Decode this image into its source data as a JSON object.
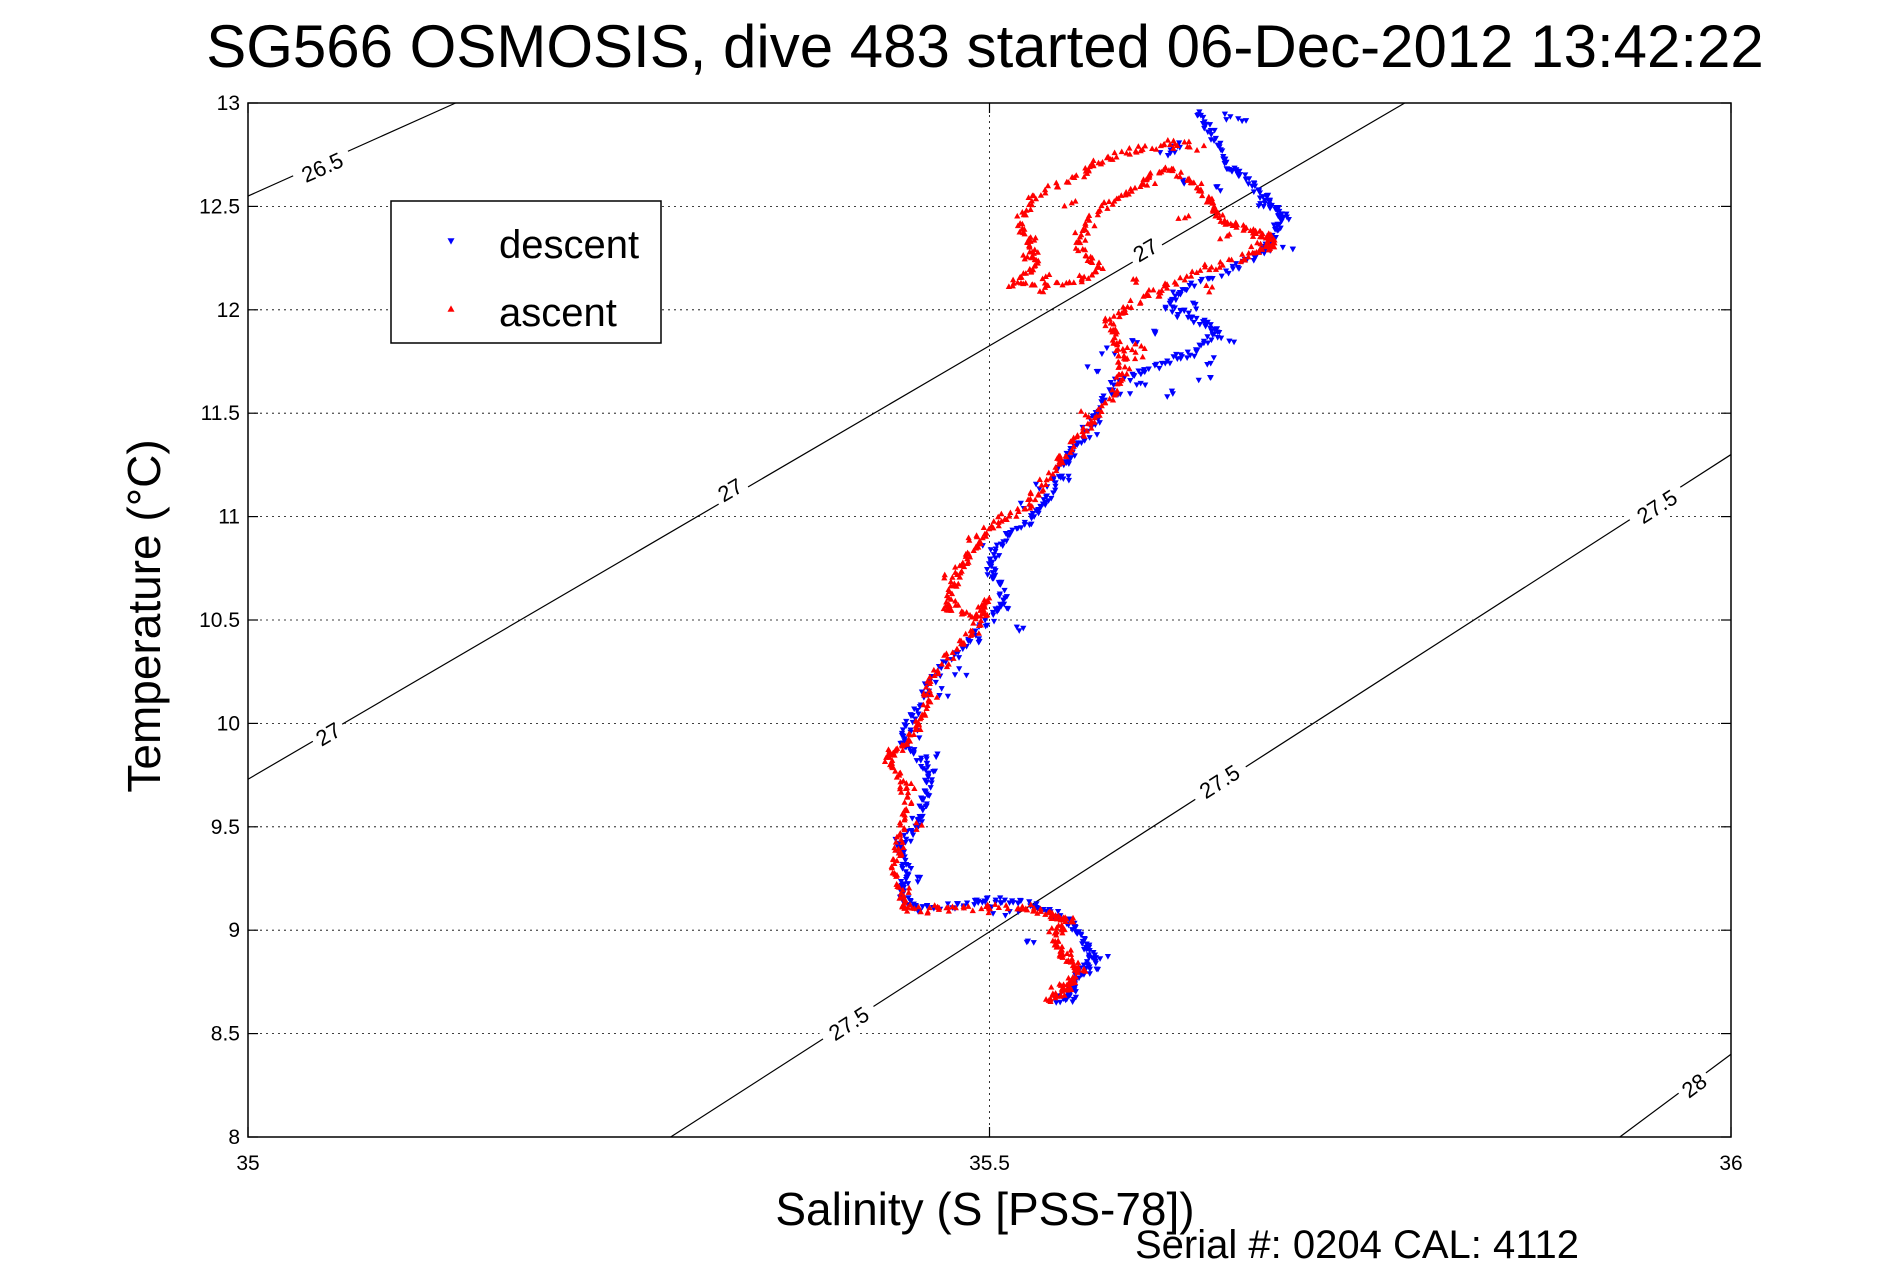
{
  "chart_data": {
    "type": "scatter",
    "title": "SG566 OSMOSIS, dive 483 started 06-Dec-2012 13:42:22",
    "xlabel": "Salinity (S [PSS-78])",
    "ylabel": "Temperature (°C)",
    "xlim": [
      35,
      36
    ],
    "ylim": [
      8,
      13
    ],
    "x_ticks": [
      35,
      35.5,
      36
    ],
    "x_tick_labels": [
      "35",
      "35.5",
      "36"
    ],
    "y_ticks": [
      8,
      8.5,
      9,
      9.5,
      10,
      10.5,
      11,
      11.5,
      12,
      12.5,
      13
    ],
    "y_tick_labels": [
      "8",
      "8.5",
      "9",
      "9.5",
      "10",
      "10.5",
      "11",
      "11.5",
      "12",
      "12.5",
      "13"
    ],
    "grid": true,
    "legend_position": "upper-left",
    "footer": "Serial #: 0204  CAL: 4112",
    "isopycnals": [
      {
        "label": "26.5",
        "points": [
          [
            35,
            12.55
          ],
          [
            35.14,
            13.0
          ]
        ],
        "label_positions": [
          [
            35.05,
            12.69
          ]
        ]
      },
      {
        "label": "27",
        "points": [
          [
            35,
            9.73
          ],
          [
            35.78,
            13.0
          ]
        ],
        "label_positions": [
          [
            35.054,
            9.95
          ],
          [
            35.325,
            11.13
          ],
          [
            35.605,
            12.29
          ]
        ]
      },
      {
        "label": "27.5",
        "points": [
          [
            35.285,
            8.0
          ],
          [
            36.0,
            11.3
          ]
        ],
        "label_positions": [
          [
            35.405,
            8.55
          ],
          [
            35.655,
            9.72
          ],
          [
            35.95,
            11.05
          ]
        ]
      },
      {
        "label": "28",
        "points": [
          [
            35.925,
            8.0
          ],
          [
            36.0,
            8.4
          ]
        ],
        "label_positions": [
          [
            35.975,
            8.25
          ]
        ]
      }
    ],
    "series": [
      {
        "name": "descent",
        "color": "#0000ff",
        "marker": "triangle-down",
        "path": [
          [
            35.64,
            12.95
          ],
          [
            35.65,
            12.85
          ],
          [
            35.66,
            12.7
          ],
          [
            35.67,
            12.65
          ],
          [
            35.685,
            12.55
          ],
          [
            35.69,
            12.5
          ],
          [
            35.7,
            12.45
          ],
          [
            35.69,
            12.35
          ],
          [
            35.685,
            12.28
          ],
          [
            35.665,
            12.2
          ],
          [
            35.63,
            12.1
          ],
          [
            35.62,
            12.02
          ],
          [
            35.64,
            11.95
          ],
          [
            35.655,
            11.9
          ],
          [
            35.64,
            11.8
          ],
          [
            35.61,
            11.72
          ],
          [
            35.585,
            11.65
          ],
          [
            35.57,
            11.5
          ],
          [
            35.56,
            11.35
          ],
          [
            35.55,
            11.25
          ],
          [
            35.54,
            11.1
          ],
          [
            35.53,
            11.0
          ],
          [
            35.51,
            10.9
          ],
          [
            35.5,
            10.75
          ],
          [
            35.51,
            10.62
          ],
          [
            35.5,
            10.5
          ],
          [
            35.48,
            10.35
          ],
          [
            35.46,
            10.2
          ],
          [
            35.45,
            10.05
          ],
          [
            35.44,
            9.92
          ],
          [
            35.455,
            9.82
          ],
          [
            35.46,
            9.7
          ],
          [
            35.455,
            9.6
          ],
          [
            35.45,
            9.5
          ],
          [
            35.44,
            9.4
          ],
          [
            35.445,
            9.28
          ],
          [
            35.44,
            9.18
          ],
          [
            35.45,
            9.1
          ],
          [
            35.48,
            9.12
          ],
          [
            35.5,
            9.15
          ],
          [
            35.525,
            9.13
          ],
          [
            35.545,
            9.08
          ],
          [
            35.56,
            9.0
          ],
          [
            35.565,
            8.92
          ],
          [
            35.57,
            8.85
          ],
          [
            35.56,
            8.78
          ],
          [
            35.555,
            8.7
          ],
          [
            35.545,
            8.65
          ]
        ],
        "extra_points": [
          [
            35.6,
            11.85
          ],
          [
            35.61,
            11.9
          ],
          [
            35.63,
            11.78
          ],
          [
            35.65,
            11.75
          ],
          [
            35.66,
            11.85
          ],
          [
            35.58,
            11.8
          ],
          [
            35.57,
            11.72
          ],
          [
            35.6,
            11.65
          ],
          [
            35.62,
            11.6
          ],
          [
            35.55,
            11.3
          ],
          [
            35.55,
            11.18
          ],
          [
            35.5,
            10.72
          ],
          [
            35.51,
            10.55
          ],
          [
            35.52,
            10.45
          ],
          [
            35.49,
            10.4
          ],
          [
            35.46,
            9.85
          ],
          [
            35.5,
            9.1
          ],
          [
            35.515,
            9.08
          ],
          [
            35.53,
            8.95
          ],
          [
            35.57,
            8.8
          ],
          [
            35.575,
            8.88
          ],
          [
            35.555,
            8.66
          ],
          [
            35.62,
            12.75
          ],
          [
            35.63,
            12.62
          ],
          [
            35.655,
            12.58
          ],
          [
            35.62,
            12.78
          ],
          [
            35.63,
            12.8
          ],
          [
            35.66,
            12.93
          ],
          [
            35.67,
            12.92
          ],
          [
            35.68,
            12.52
          ],
          [
            35.695,
            12.4
          ],
          [
            35.7,
            12.3
          ],
          [
            35.64,
            12.02
          ],
          [
            35.63,
            11.98
          ],
          [
            35.645,
            11.68
          ],
          [
            35.59,
            11.58
          ],
          [
            35.575,
            11.46
          ],
          [
            35.57,
            11.4
          ],
          [
            35.535,
            11.15
          ],
          [
            35.525,
            11.05
          ],
          [
            35.5,
            10.85
          ],
          [
            35.5,
            10.8
          ],
          [
            35.48,
            10.25
          ],
          [
            35.47,
            10.15
          ],
          [
            35.45,
            9.95
          ],
          [
            35.46,
            9.75
          ],
          [
            35.45,
            9.55
          ],
          [
            35.44,
            9.42
          ],
          [
            35.45,
            9.25
          ]
        ]
      },
      {
        "name": "ascent",
        "color": "#ff0000",
        "marker": "triangle-up",
        "path": [
          [
            35.635,
            12.8
          ],
          [
            35.6,
            12.78
          ],
          [
            35.575,
            12.72
          ],
          [
            35.56,
            12.65
          ],
          [
            35.53,
            12.55
          ],
          [
            35.52,
            12.42
          ],
          [
            35.53,
            12.3
          ],
          [
            35.53,
            12.2
          ],
          [
            35.515,
            12.12
          ],
          [
            35.555,
            12.12
          ],
          [
            35.575,
            12.2
          ],
          [
            35.56,
            12.3
          ],
          [
            35.57,
            12.45
          ],
          [
            35.6,
            12.6
          ],
          [
            35.62,
            12.7
          ],
          [
            35.64,
            12.6
          ],
          [
            35.65,
            12.5
          ],
          [
            35.66,
            12.42
          ],
          [
            35.675,
            12.38
          ],
          [
            35.69,
            12.35
          ],
          [
            35.69,
            12.3
          ],
          [
            35.67,
            12.25
          ],
          [
            35.63,
            12.15
          ],
          [
            35.6,
            12.05
          ],
          [
            35.58,
            11.95
          ],
          [
            35.585,
            11.85
          ],
          [
            35.59,
            11.75
          ],
          [
            35.585,
            11.6
          ],
          [
            35.57,
            11.45
          ],
          [
            35.555,
            11.35
          ],
          [
            35.54,
            11.2
          ],
          [
            35.525,
            11.05
          ],
          [
            35.5,
            10.95
          ],
          [
            35.49,
            10.85
          ],
          [
            35.48,
            10.75
          ],
          [
            35.475,
            10.65
          ],
          [
            35.47,
            10.55
          ],
          [
            35.49,
            10.52
          ],
          [
            35.5,
            10.6
          ],
          [
            35.49,
            10.45
          ],
          [
            35.475,
            10.35
          ],
          [
            35.46,
            10.2
          ],
          [
            35.455,
            10.05
          ],
          [
            35.445,
            9.9
          ],
          [
            35.43,
            9.85
          ],
          [
            35.44,
            9.75
          ],
          [
            35.445,
            9.6
          ],
          [
            35.44,
            9.45
          ],
          [
            35.435,
            9.3
          ],
          [
            35.44,
            9.15
          ],
          [
            35.445,
            9.1
          ],
          [
            35.48,
            9.1
          ],
          [
            35.52,
            9.12
          ],
          [
            35.54,
            9.08
          ],
          [
            35.55,
            9.05
          ],
          [
            35.545,
            8.95
          ],
          [
            35.55,
            8.88
          ],
          [
            35.56,
            8.82
          ],
          [
            35.555,
            8.75
          ],
          [
            35.55,
            8.7
          ],
          [
            35.54,
            8.66
          ]
        ],
        "extra_points": [
          [
            35.62,
            12.8
          ],
          [
            35.64,
            12.78
          ],
          [
            35.66,
            12.35
          ],
          [
            35.68,
            12.32
          ],
          [
            35.595,
            11.8
          ],
          [
            35.6,
            11.78
          ],
          [
            35.6,
            11.82
          ],
          [
            35.59,
            11.7
          ],
          [
            35.565,
            11.5
          ],
          [
            35.545,
            11.3
          ],
          [
            35.53,
            11.1
          ],
          [
            35.51,
            11.0
          ],
          [
            35.49,
            10.9
          ],
          [
            35.47,
            10.7
          ],
          [
            35.48,
            10.58
          ],
          [
            35.46,
            10.12
          ],
          [
            35.45,
            9.98
          ],
          [
            35.435,
            9.88
          ],
          [
            35.445,
            9.7
          ],
          [
            35.45,
            9.5
          ],
          [
            35.44,
            9.38
          ],
          [
            35.445,
            9.2
          ],
          [
            35.46,
            9.1
          ],
          [
            35.5,
            9.1
          ],
          [
            35.56,
            9.05
          ],
          [
            35.545,
            9.0
          ],
          [
            35.55,
            8.9
          ],
          [
            35.56,
            8.8
          ],
          [
            35.545,
            8.72
          ],
          [
            35.53,
            12.35
          ],
          [
            35.525,
            12.25
          ],
          [
            35.54,
            12.15
          ],
          [
            35.535,
            12.1
          ],
          [
            35.58,
            12.5
          ],
          [
            35.59,
            12.55
          ],
          [
            35.61,
            12.62
          ],
          [
            35.63,
            12.45
          ],
          [
            35.645,
            12.2
          ],
          [
            35.65,
            12.1
          ],
          [
            35.62,
            12.12
          ],
          [
            35.61,
            12.08
          ],
          [
            35.595,
            12.15
          ],
          [
            35.56,
            12.38
          ],
          [
            35.555,
            12.52
          ]
        ]
      }
    ]
  }
}
